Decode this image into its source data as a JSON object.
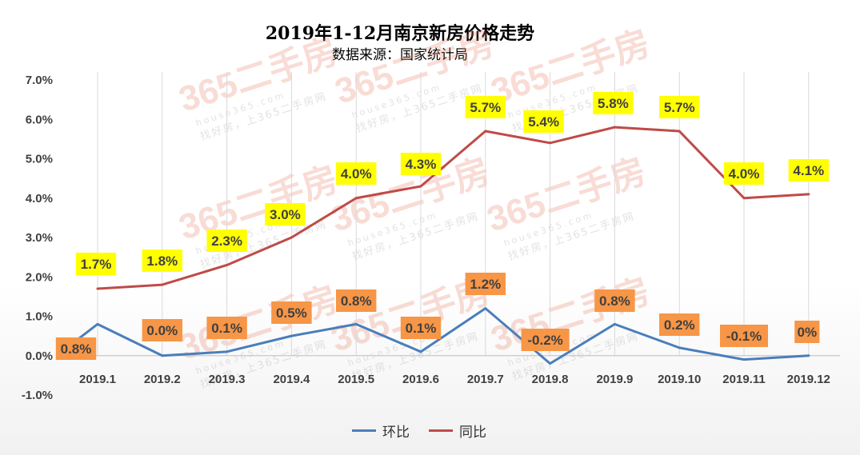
{
  "chart_data": {
    "type": "line",
    "title": "2019年1-12月南京新房价格走势",
    "subtitle": "数据来源：国家统计局",
    "categories": [
      "2019.1",
      "2019.2",
      "2019.3",
      "2019.4",
      "2019.5",
      "2019.6",
      "2019.7",
      "2019.8",
      "2019.9",
      "2019.10",
      "2019.11",
      "2019.12"
    ],
    "y_ticks": [
      "7.0%",
      "6.0%",
      "5.0%",
      "4.0%",
      "3.0%",
      "2.0%",
      "1.0%",
      "0.0%",
      "-1.0%"
    ],
    "ylim": [
      -1.0,
      7.0
    ],
    "grid": "vertical",
    "legend_position": "bottom",
    "series": [
      {
        "name": "环比",
        "color": "#4a7ebb",
        "values": [
          0.8,
          0.0,
          0.1,
          0.5,
          0.8,
          0.1,
          1.2,
          -0.2,
          0.8,
          0.2,
          -0.1,
          0.0
        ],
        "labels": [
          "0.8%",
          "0.0%",
          "0.1%",
          "0.5%",
          "0.8%",
          "0.1%",
          "1.2%",
          "-0.2%",
          "0.8%",
          "0.2%",
          "-0.1%",
          "0%"
        ],
        "label_bg": "#f79646"
      },
      {
        "name": "同比",
        "color": "#be4b48",
        "values": [
          1.7,
          1.8,
          2.3,
          3.0,
          4.0,
          4.3,
          5.7,
          5.4,
          5.8,
          5.7,
          4.0,
          4.1
        ],
        "labels": [
          "1.7%",
          "1.8%",
          "2.3%",
          "3.0%",
          "4.0%",
          "4.3%",
          "5.7%",
          "5.4%",
          "5.8%",
          "5.7%",
          "4.0%",
          "4.1%"
        ],
        "label_bg": "#ffff00"
      }
    ]
  },
  "watermark": {
    "logo": "365二手房",
    "url": "house365.com",
    "slogan": "找好房，上365二手房网"
  }
}
